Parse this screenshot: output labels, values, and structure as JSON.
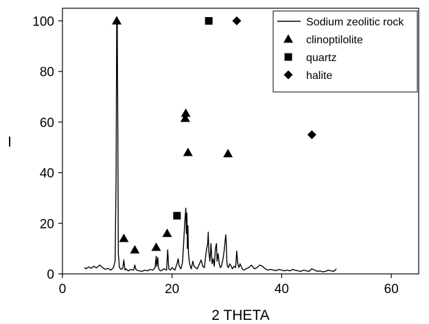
{
  "chart_data": {
    "type": "line",
    "title": "",
    "xlabel": "2 THETA",
    "ylabel": "I",
    "xlim": [
      0,
      65
    ],
    "ylim": [
      0,
      105
    ],
    "xticks": [
      0,
      20,
      40,
      60
    ],
    "yticks": [
      0,
      20,
      40,
      60,
      80,
      100
    ],
    "grid": false,
    "legend_position": "top-right",
    "series": [
      {
        "name": "Sodium zeolitic rock",
        "style": "line",
        "x": [
          4.0,
          4.3,
          4.8,
          5.2,
          5.7,
          6.2,
          6.8,
          7.3,
          7.8,
          8.3,
          8.8,
          9.3,
          9.6,
          9.8,
          9.9,
          10.0,
          10.1,
          10.2,
          10.4,
          10.7,
          11.0,
          11.2,
          11.4,
          11.6,
          12.0,
          12.5,
          13.0,
          13.2,
          13.4,
          13.6,
          14.0,
          14.5,
          15.0,
          15.5,
          16.0,
          16.5,
          16.9,
          17.1,
          17.2,
          17.4,
          17.5,
          17.7,
          18.0,
          18.5,
          19.0,
          19.2,
          19.4,
          19.7,
          20.0,
          20.5,
          20.9,
          21.1,
          21.3,
          21.6,
          21.9,
          22.1,
          22.3,
          22.5,
          22.6,
          22.7,
          22.8,
          22.9,
          23.0,
          23.2,
          23.5,
          23.8,
          24.0,
          24.3,
          24.6,
          25.0,
          25.3,
          25.6,
          25.9,
          26.1,
          26.3,
          26.5,
          26.6,
          26.7,
          26.9,
          27.1,
          27.3,
          27.5,
          27.7,
          27.9,
          28.1,
          28.2,
          28.4,
          28.6,
          28.8,
          29.0,
          29.3,
          29.5,
          29.8,
          29.9,
          30.0,
          30.1,
          30.3,
          30.5,
          30.8,
          31.0,
          31.3,
          31.6,
          31.8,
          32.0,
          32.2,
          32.4,
          32.6,
          32.8,
          33.1,
          33.5,
          34.0,
          34.5,
          35.0,
          35.5,
          36.0,
          36.5,
          37.0,
          37.5,
          38.0,
          38.5,
          39.0,
          39.5,
          40.0,
          40.5,
          41.0,
          41.5,
          42.0,
          42.5,
          43.0,
          43.5,
          44.0,
          44.5,
          45.0,
          45.5,
          46.0,
          46.3,
          46.6,
          47.0,
          47.5,
          48.0,
          48.5,
          49.0,
          49.5,
          50.0
        ],
        "y": [
          2.5,
          2.0,
          2.8,
          2.2,
          3.0,
          2.4,
          3.5,
          2.5,
          1.8,
          2.2,
          1.5,
          2.5,
          5.0,
          40.0,
          99.0,
          100.0,
          60.0,
          8.0,
          2.5,
          1.8,
          2.2,
          5.5,
          1.5,
          2.0,
          1.2,
          1.8,
          1.5,
          3.5,
          1.8,
          1.5,
          1.2,
          1.0,
          1.5,
          1.2,
          1.8,
          1.5,
          2.5,
          7.0,
          3.0,
          6.5,
          2.5,
          1.5,
          1.2,
          2.0,
          1.5,
          9.5,
          2.0,
          1.5,
          2.5,
          1.5,
          4.0,
          6.0,
          3.0,
          2.0,
          4.5,
          12.0,
          20.0,
          26.0,
          16.0,
          24.0,
          10.0,
          19.0,
          8.0,
          4.0,
          2.0,
          5.0,
          3.0,
          2.5,
          2.0,
          4.0,
          5.5,
          3.0,
          2.5,
          6.5,
          10.0,
          12.0,
          16.5,
          9.0,
          5.0,
          12.0,
          4.0,
          6.0,
          3.0,
          10.0,
          12.0,
          5.0,
          8.0,
          4.0,
          2.5,
          3.0,
          6.0,
          9.0,
          15.5,
          12.0,
          5.0,
          3.0,
          2.5,
          4.0,
          3.0,
          2.0,
          3.0,
          2.5,
          9.0,
          4.0,
          2.5,
          4.0,
          3.0,
          2.0,
          1.5,
          2.0,
          2.5,
          3.5,
          2.0,
          2.5,
          3.5,
          3.0,
          2.0,
          1.5,
          1.8,
          1.5,
          1.3,
          1.8,
          1.5,
          1.2,
          1.5,
          1.2,
          1.8,
          1.4,
          1.2,
          1.0,
          1.5,
          1.2,
          1.0,
          2.0,
          1.5,
          1.2,
          1.0,
          1.2,
          0.8,
          1.0,
          1.5,
          1.2,
          1.0,
          2.0
        ]
      },
      {
        "name": "clinoptilolite",
        "style": "marker",
        "marker": "triangle",
        "x": [
          9.9,
          11.2,
          13.2,
          17.1,
          19.1,
          22.4,
          22.5,
          22.9,
          30.2
        ],
        "y": [
          100,
          14,
          9.5,
          10.5,
          16,
          61.5,
          63.5,
          48,
          47.5
        ]
      },
      {
        "name": "quartz",
        "style": "marker",
        "marker": "square",
        "x": [
          20.9,
          26.7
        ],
        "y": [
          23,
          100
        ]
      },
      {
        "name": "halite",
        "style": "marker",
        "marker": "diamond",
        "x": [
          31.8,
          45.5
        ],
        "y": [
          100,
          55
        ]
      }
    ]
  }
}
